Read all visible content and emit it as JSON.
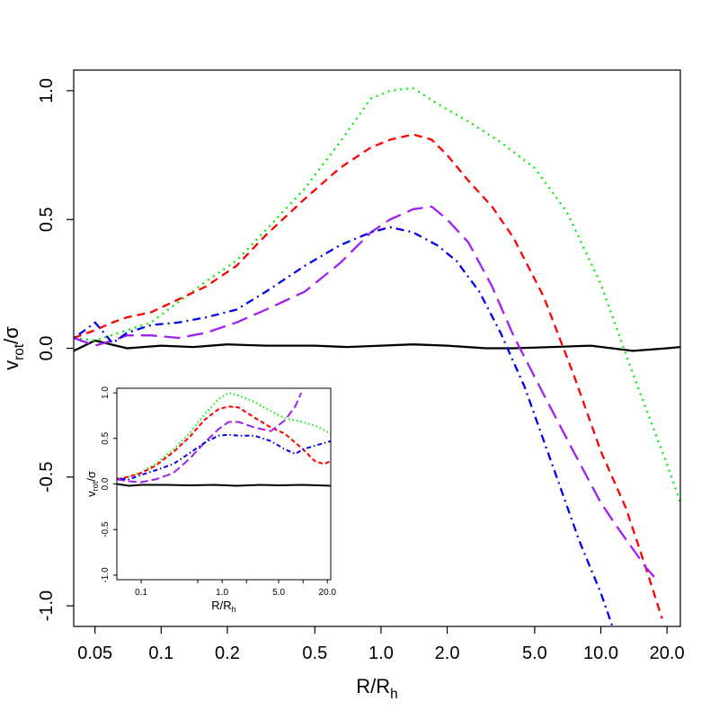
{
  "chart_data": [
    {
      "id": "main",
      "type": "line",
      "xscale": "log",
      "xlim": [
        0.04,
        23
      ],
      "ylim": [
        -1.08,
        1.08
      ],
      "xlabel": "R/R",
      "xlabel_sub": "h",
      "ylabel": "v",
      "ylabel_sub": "rot",
      "ylabel_suffix": "/σ",
      "xticks": [
        {
          "v": 0.05,
          "label": "0.05"
        },
        {
          "v": 0.1,
          "label": "0.1"
        },
        {
          "v": 0.2,
          "label": "0.2"
        },
        {
          "v": 0.5,
          "label": "0.5"
        },
        {
          "v": 1.0,
          "label": "1.0"
        },
        {
          "v": 2.0,
          "label": "2.0"
        },
        {
          "v": 5.0,
          "label": "5.0"
        },
        {
          "v": 10.0,
          "label": "10.0"
        },
        {
          "v": 20.0,
          "label": "20.0"
        }
      ],
      "yticks": [
        {
          "v": -1.0,
          "label": "-1.0"
        },
        {
          "v": -0.5,
          "label": "-0.5"
        },
        {
          "v": 0.0,
          "label": "0.0"
        },
        {
          "v": 0.5,
          "label": "0.5"
        },
        {
          "v": 1.0,
          "label": "1.0"
        }
      ],
      "series": [
        {
          "name": "black",
          "color": "#000000",
          "dash": "none",
          "x": [
            0.04,
            0.05,
            0.07,
            0.1,
            0.14,
            0.2,
            0.3,
            0.5,
            0.7,
            1.0,
            1.4,
            2.0,
            3.0,
            4.0,
            6.0,
            9.0,
            14.0,
            20.0,
            23.0
          ],
          "y": [
            -0.01,
            0.03,
            0.0,
            0.01,
            0.005,
            0.015,
            0.01,
            0.01,
            0.005,
            0.01,
            0.015,
            0.01,
            0.0,
            0.0,
            0.005,
            0.01,
            -0.01,
            0.0,
            0.005
          ]
        },
        {
          "name": "green",
          "color": "#00ee00",
          "dash": "dotted",
          "x": [
            0.04,
            0.05,
            0.07,
            0.09,
            0.12,
            0.16,
            0.22,
            0.3,
            0.45,
            0.65,
            0.9,
            1.1,
            1.4,
            1.8,
            2.5,
            3.5,
            5.0,
            7.0,
            10.0,
            14.0,
            20.0,
            23.0
          ],
          "y": [
            0.04,
            0.03,
            0.07,
            0.1,
            0.18,
            0.26,
            0.34,
            0.46,
            0.62,
            0.8,
            0.97,
            1.0,
            1.01,
            0.95,
            0.88,
            0.8,
            0.7,
            0.53,
            0.25,
            -0.1,
            -0.45,
            -0.6
          ]
        },
        {
          "name": "red",
          "color": "#ff0000",
          "dash": "dashed",
          "x": [
            0.04,
            0.05,
            0.06,
            0.07,
            0.09,
            0.12,
            0.16,
            0.22,
            0.3,
            0.45,
            0.65,
            0.9,
            1.1,
            1.4,
            1.7,
            2.0,
            2.5,
            3.2,
            4.0,
            5.5,
            7.5,
            10.0,
            13.0,
            16.0,
            19.0
          ],
          "y": [
            0.04,
            0.07,
            0.1,
            0.12,
            0.14,
            0.19,
            0.24,
            0.32,
            0.44,
            0.58,
            0.7,
            0.78,
            0.81,
            0.83,
            0.81,
            0.75,
            0.65,
            0.55,
            0.43,
            0.2,
            -0.1,
            -0.4,
            -0.62,
            -0.85,
            -1.05
          ]
        },
        {
          "name": "purple",
          "color": "#a020f0",
          "dash": "longdash",
          "x": [
            0.04,
            0.05,
            0.06,
            0.07,
            0.09,
            0.12,
            0.16,
            0.22,
            0.3,
            0.45,
            0.65,
            0.9,
            1.1,
            1.4,
            1.7,
            2.0,
            2.5,
            3.2,
            4.0,
            5.5,
            7.5,
            10.0,
            12.0,
            14.0,
            16.0,
            18.0
          ],
          "y": [
            0.04,
            0.01,
            0.03,
            0.05,
            0.05,
            0.04,
            0.06,
            0.1,
            0.15,
            0.22,
            0.33,
            0.45,
            0.5,
            0.54,
            0.55,
            0.5,
            0.41,
            0.24,
            0.05,
            -0.18,
            -0.4,
            -0.6,
            -0.7,
            -0.78,
            -0.85,
            -0.9
          ]
        },
        {
          "name": "blue",
          "color": "#0000ee",
          "dash": "dotdash",
          "x": [
            0.04,
            0.045,
            0.05,
            0.055,
            0.06,
            0.07,
            0.09,
            0.12,
            0.16,
            0.22,
            0.3,
            0.45,
            0.65,
            0.9,
            1.1,
            1.4,
            1.8,
            2.2,
            2.8,
            3.5,
            4.5,
            6.0,
            8.0,
            10.0,
            11.5
          ],
          "y": [
            0.04,
            0.07,
            0.1,
            0.06,
            0.02,
            0.06,
            0.09,
            0.1,
            0.12,
            0.15,
            0.22,
            0.32,
            0.4,
            0.45,
            0.47,
            0.45,
            0.4,
            0.34,
            0.22,
            0.06,
            -0.15,
            -0.45,
            -0.75,
            -0.95,
            -1.1
          ]
        }
      ]
    },
    {
      "id": "inset",
      "type": "line",
      "xscale": "log",
      "xlim": [
        0.05,
        22
      ],
      "ylim": [
        -1.05,
        1.05
      ],
      "xlabel": "R/R",
      "xlabel_sub": "h",
      "ylabel": "v",
      "ylabel_sub": "rot",
      "ylabel_suffix": "/σ",
      "xticks": [
        {
          "v": 0.1,
          "label": "0.1"
        },
        {
          "v": 1.0,
          "label": "1.0"
        },
        {
          "v": 5.0,
          "label": "5.0"
        },
        {
          "v": 20.0,
          "label": "20.0"
        }
      ],
      "xticks_minor": [
        0.5,
        2.0,
        10.0
      ],
      "yticks": [
        {
          "v": -1.0,
          "label": "-1.0"
        },
        {
          "v": -0.5,
          "label": "-0.5"
        },
        {
          "v": 0.0,
          "label": "0.0"
        },
        {
          "v": 0.5,
          "label": "0.5"
        },
        {
          "v": 1.0,
          "label": "1.0"
        }
      ],
      "series": [
        {
          "name": "black",
          "color": "#000000",
          "dash": "none",
          "x": [
            0.05,
            0.07,
            0.1,
            0.2,
            0.4,
            0.8,
            1.5,
            3.0,
            5.0,
            10.0,
            22.0
          ],
          "y": [
            0.0,
            -0.02,
            -0.01,
            -0.01,
            -0.015,
            -0.01,
            -0.02,
            -0.01,
            -0.015,
            -0.01,
            -0.02
          ]
        },
        {
          "name": "green",
          "color": "#00ee00",
          "dash": "dotted",
          "x": [
            0.05,
            0.07,
            0.1,
            0.15,
            0.25,
            0.4,
            0.6,
            0.9,
            1.2,
            1.6,
            2.5,
            4.0,
            6.0,
            10.0,
            16.0,
            22.0
          ],
          "y": [
            0.05,
            0.08,
            0.13,
            0.22,
            0.38,
            0.56,
            0.76,
            0.93,
            1.0,
            0.97,
            0.9,
            0.8,
            0.72,
            0.68,
            0.62,
            0.55
          ]
        },
        {
          "name": "red",
          "color": "#ff0000",
          "dash": "dashed",
          "x": [
            0.05,
            0.07,
            0.1,
            0.15,
            0.25,
            0.4,
            0.6,
            0.9,
            1.2,
            1.6,
            2.5,
            4.0,
            6.0,
            10.0,
            14.0,
            18.0,
            22.0
          ],
          "y": [
            0.05,
            0.08,
            0.12,
            0.2,
            0.35,
            0.52,
            0.7,
            0.82,
            0.85,
            0.84,
            0.73,
            0.62,
            0.55,
            0.38,
            0.25,
            0.22,
            0.25
          ]
        },
        {
          "name": "purple",
          "color": "#a020f0",
          "dash": "longdash",
          "x": [
            0.05,
            0.07,
            0.1,
            0.15,
            0.25,
            0.4,
            0.6,
            0.9,
            1.2,
            1.6,
            2.5,
            4.0,
            6.0,
            8.0,
            9.5
          ],
          "y": [
            0.05,
            0.03,
            0.02,
            0.05,
            0.12,
            0.28,
            0.45,
            0.6,
            0.68,
            0.68,
            0.62,
            0.58,
            0.7,
            0.85,
            1.0
          ]
        },
        {
          "name": "blue",
          "color": "#0000ee",
          "dash": "dotdash",
          "x": [
            0.05,
            0.07,
            0.1,
            0.15,
            0.25,
            0.4,
            0.6,
            0.9,
            1.2,
            1.6,
            2.5,
            4.0,
            6.0,
            8.0,
            10.0,
            14.0,
            22.0
          ],
          "y": [
            0.06,
            0.05,
            0.1,
            0.15,
            0.22,
            0.34,
            0.45,
            0.53,
            0.54,
            0.53,
            0.53,
            0.47,
            0.38,
            0.33,
            0.38,
            0.42,
            0.47
          ]
        }
      ]
    }
  ]
}
